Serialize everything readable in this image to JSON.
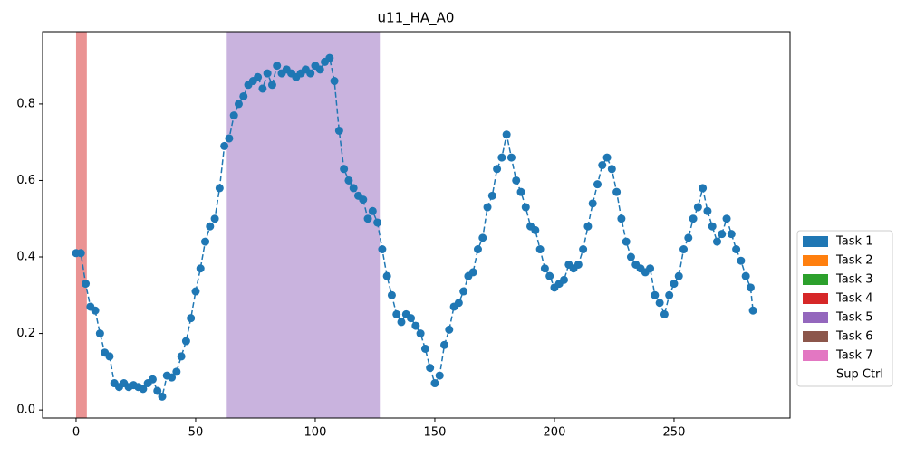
{
  "chart_data": {
    "type": "line",
    "title": "u11_HA_A0",
    "x": [
      0,
      2,
      4,
      6,
      8,
      10,
      12,
      14,
      16,
      18,
      20,
      22,
      24,
      26,
      28,
      30,
      32,
      34,
      36,
      38,
      40,
      42,
      44,
      46,
      48,
      50,
      52,
      54,
      56,
      58,
      60,
      62,
      64,
      66,
      68,
      70,
      72,
      74,
      76,
      78,
      80,
      82,
      84,
      86,
      88,
      90,
      92,
      94,
      96,
      98,
      100,
      102,
      104,
      106,
      108,
      110,
      112,
      114,
      116,
      118,
      120,
      122,
      124,
      126,
      128,
      130,
      132,
      134,
      136,
      138,
      140,
      142,
      144,
      146,
      148,
      150,
      152,
      154,
      156,
      158,
      160,
      162,
      164,
      166,
      168,
      170,
      172,
      174,
      176,
      178,
      180,
      182,
      184,
      186,
      188,
      190,
      192,
      194,
      196,
      198,
      200,
      202,
      204,
      206,
      208,
      210,
      212,
      214,
      216,
      218,
      220,
      222,
      224,
      226,
      228,
      230,
      232,
      234,
      236,
      238,
      240,
      242,
      244,
      246,
      248,
      250,
      252,
      254,
      256,
      258,
      260,
      262,
      264,
      266,
      268,
      270,
      272,
      274,
      276,
      278,
      280,
      282,
      283
    ],
    "series": [
      {
        "color": "#1f77b4",
        "values": [
          0.41,
          0.41,
          0.33,
          0.27,
          0.26,
          0.2,
          0.15,
          0.14,
          0.07,
          0.06,
          0.07,
          0.06,
          0.065,
          0.06,
          0.055,
          0.07,
          0.08,
          0.05,
          0.035,
          0.09,
          0.085,
          0.1,
          0.14,
          0.18,
          0.24,
          0.31,
          0.37,
          0.44,
          0.48,
          0.5,
          0.58,
          0.69,
          0.71,
          0.77,
          0.8,
          0.82,
          0.85,
          0.86,
          0.87,
          0.84,
          0.88,
          0.85,
          0.9,
          0.88,
          0.89,
          0.88,
          0.87,
          0.88,
          0.89,
          0.88,
          0.9,
          0.89,
          0.91,
          0.92,
          0.86,
          0.73,
          0.63,
          0.6,
          0.58,
          0.56,
          0.55,
          0.5,
          0.52,
          0.49,
          0.42,
          0.35,
          0.3,
          0.25,
          0.23,
          0.25,
          0.24,
          0.22,
          0.2,
          0.16,
          0.11,
          0.07,
          0.09,
          0.17,
          0.21,
          0.27,
          0.28,
          0.31,
          0.35,
          0.36,
          0.42,
          0.45,
          0.53,
          0.56,
          0.63,
          0.66,
          0.72,
          0.66,
          0.6,
          0.57,
          0.53,
          0.48,
          0.47,
          0.42,
          0.37,
          0.35,
          0.32,
          0.33,
          0.34,
          0.38,
          0.37,
          0.38,
          0.42,
          0.48,
          0.54,
          0.59,
          0.64,
          0.66,
          0.63,
          0.57,
          0.5,
          0.44,
          0.4,
          0.38,
          0.37,
          0.36,
          0.37,
          0.3,
          0.28,
          0.25,
          0.3,
          0.33,
          0.35,
          0.42,
          0.45,
          0.5,
          0.53,
          0.58,
          0.52,
          0.48,
          0.44,
          0.46,
          0.5,
          0.46,
          0.42,
          0.39,
          0.35,
          0.32,
          0.26
        ]
      }
    ],
    "spans": [
      {
        "x0": 0,
        "x1": 4.5,
        "color": "#d62728"
      },
      {
        "x0": 63,
        "x1": 127,
        "color": "#9467bd"
      }
    ],
    "legend": [
      {
        "name": "Task 1",
        "color": "#1f77b4"
      },
      {
        "name": "Task 2",
        "color": "#ff7f0e"
      },
      {
        "name": "Task 3",
        "color": "#2ca02c"
      },
      {
        "name": "Task 4",
        "color": "#d62728"
      },
      {
        "name": "Task 5",
        "color": "#9467bd"
      },
      {
        "name": "Task 6",
        "color": "#8c564b"
      },
      {
        "name": "Task 7",
        "color": "#e377c2"
      },
      {
        "name": "Sup Ctrl",
        "color": "#ffffff"
      }
    ],
    "xlim": [
      -14,
      298.5
    ],
    "ylim": [
      -0.021,
      0.989
    ],
    "xticks": [
      0,
      50,
      100,
      150,
      200,
      250
    ],
    "yticks": [
      {
        "value": 0,
        "label": "0.0"
      },
      0.2,
      0.4,
      0.6,
      0.8
    ]
  }
}
